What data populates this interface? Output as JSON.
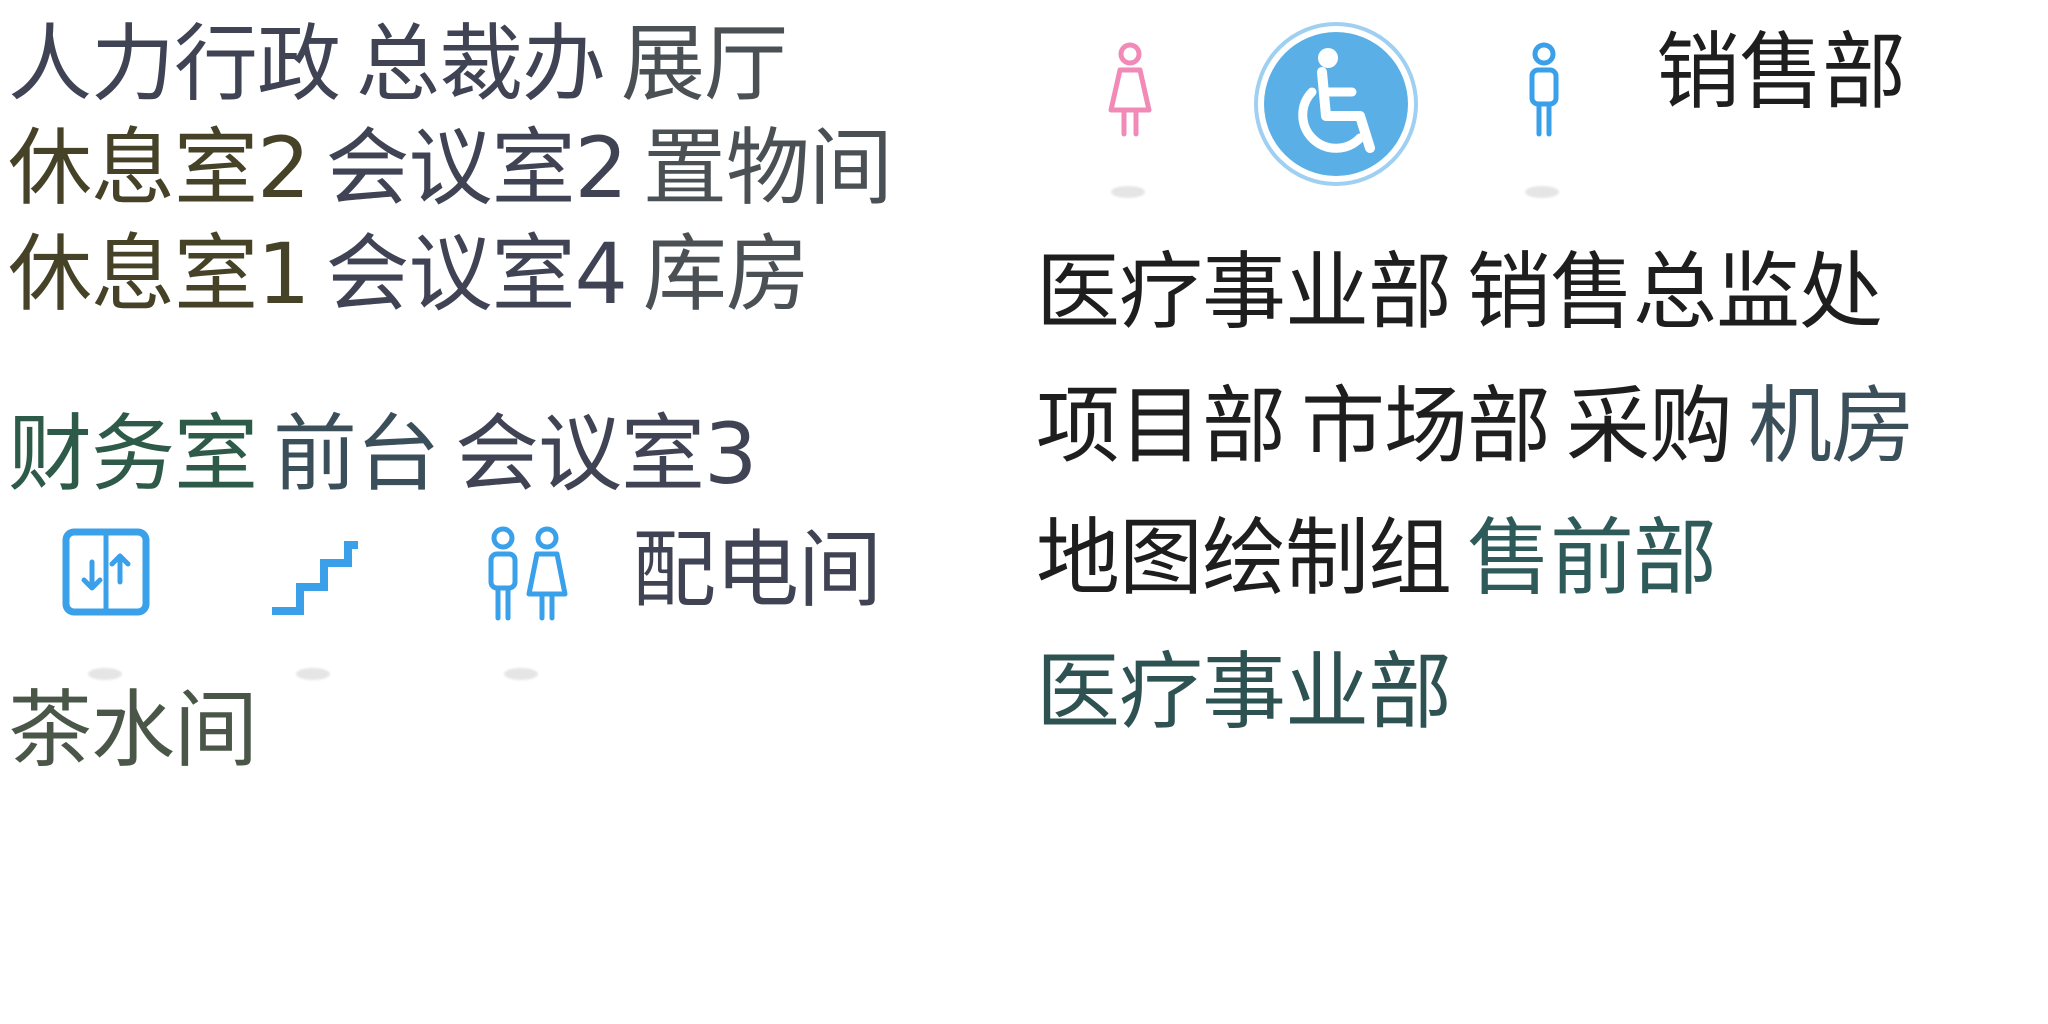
{
  "colors": {
    "dark_slate": "#3f4354",
    "olive": "#454228",
    "teal": "#2e5a4a",
    "slate_teal": "#3b4f5a",
    "gray_green": "#4a5748",
    "black": "#1e1e1e",
    "icon_blue": "#3aa0ea",
    "icon_pink": "#f28ab8",
    "accessible_bg": "#5ab0e6"
  },
  "labels": {
    "hr_admin": "人力行政",
    "ceo_office": "总裁办",
    "showroom": "展厅",
    "lounge_2": "休息室2",
    "meeting_2": "会议室2",
    "storage": "置物间",
    "lounge_1": "休息室1",
    "meeting_4": "会议室4",
    "warehouse": "库房",
    "finance": "财务室",
    "reception": "前台",
    "meeting_3": "会议室3",
    "power_room": "配电间",
    "tea_room": "茶水间",
    "sales_dept": "销售部",
    "medical_div_1": "医疗事业部",
    "sales_director": "销售总监处",
    "project_dept": "项目部",
    "marketing_dept": "市场部",
    "purchasing": "采购",
    "server_room": "机房",
    "cartography": "地图绘制组",
    "presales": "售前部",
    "medical_div_2": "医疗事业部"
  },
  "icons": {
    "elevator": "elevator-icon",
    "stairs": "stairs-icon",
    "restroom": "restroom-icon",
    "female_restroom": "female-restroom-icon",
    "accessible": "accessible-icon",
    "male_restroom": "male-restroom-icon"
  }
}
